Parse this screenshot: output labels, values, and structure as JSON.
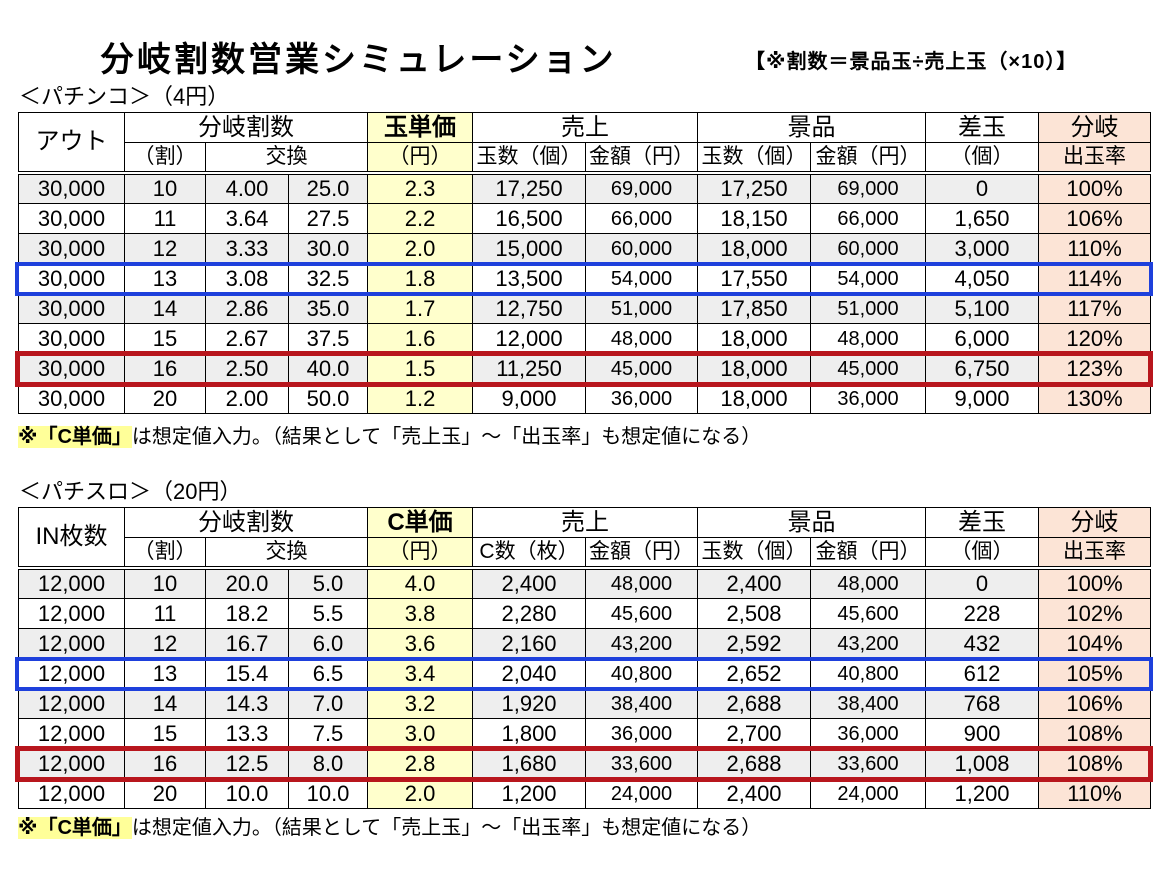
{
  "title": "分岐割数営業シミュレーション",
  "formula_note": "【※割数＝景品玉÷売上玉（×10）】",
  "colors": {
    "unit_price_column": "#ffffcc",
    "payout_rate_column": "#fce4d6",
    "row_stripe": "#eeeeee",
    "highlight_blue": "#1e40dc",
    "highlight_red": "#b8161d",
    "note_highlight": "#ffff99"
  },
  "tables": [
    {
      "label": "＜パチンコ＞（4円）",
      "headers": {
        "first_col": "アウト",
        "split_ratio": "分岐割数",
        "unit_price": "玉単価",
        "sales": "売上",
        "prize": "景品",
        "diff": "差玉",
        "payout": "分岐",
        "ratio_unit": "（割）",
        "exchange": "交換",
        "unit_price_unit": "（円）",
        "sales_count": "玉数（個）",
        "sales_amount": "金額（円）",
        "prize_count": "玉数（個）",
        "prize_amount": "金額（円）",
        "diff_unit": "（個）",
        "payout_rate": "出玉率"
      },
      "rows": [
        {
          "cells": [
            "30,000",
            "10",
            "4.00",
            "25.0",
            "2.3",
            "17,250",
            "69,000",
            "17,250",
            "69,000",
            "0",
            "100%"
          ]
        },
        {
          "cells": [
            "30,000",
            "11",
            "3.64",
            "27.5",
            "2.2",
            "16,500",
            "66,000",
            "18,150",
            "66,000",
            "1,650",
            "106%"
          ]
        },
        {
          "cells": [
            "30,000",
            "12",
            "3.33",
            "30.0",
            "2.0",
            "15,000",
            "60,000",
            "18,000",
            "60,000",
            "3,000",
            "110%"
          ]
        },
        {
          "cells": [
            "30,000",
            "13",
            "3.08",
            "32.5",
            "1.8",
            "13,500",
            "54,000",
            "17,550",
            "54,000",
            "4,050",
            "114%"
          ],
          "highlight": "blue"
        },
        {
          "cells": [
            "30,000",
            "14",
            "2.86",
            "35.0",
            "1.7",
            "12,750",
            "51,000",
            "17,850",
            "51,000",
            "5,100",
            "117%"
          ]
        },
        {
          "cells": [
            "30,000",
            "15",
            "2.67",
            "37.5",
            "1.6",
            "12,000",
            "48,000",
            "18,000",
            "48,000",
            "6,000",
            "120%"
          ]
        },
        {
          "cells": [
            "30,000",
            "16",
            "2.50",
            "40.0",
            "1.5",
            "11,250",
            "45,000",
            "18,000",
            "45,000",
            "6,750",
            "123%"
          ],
          "highlight": "red"
        },
        {
          "cells": [
            "30,000",
            "20",
            "2.00",
            "50.0",
            "1.2",
            "9,000",
            "36,000",
            "18,000",
            "36,000",
            "9,000",
            "130%"
          ]
        }
      ],
      "note": {
        "highlight": "※「C単価」",
        "text": "は想定値入力。（結果として「売上玉」～「出玉率」も想定値になる）"
      }
    },
    {
      "label": "＜パチスロ＞（20円）",
      "headers": {
        "first_col": "IN枚数",
        "split_ratio": "分岐割数",
        "unit_price": "C単価",
        "sales": "売上",
        "prize": "景品",
        "diff": "差玉",
        "payout": "分岐",
        "ratio_unit": "（割）",
        "exchange": "交換",
        "unit_price_unit": "（円）",
        "sales_count": "C数（枚）",
        "sales_amount": "金額（円）",
        "prize_count": "玉数（個）",
        "prize_amount": "金額（円）",
        "diff_unit": "（個）",
        "payout_rate": "出玉率"
      },
      "rows": [
        {
          "cells": [
            "12,000",
            "10",
            "20.0",
            "5.0",
            "4.0",
            "2,400",
            "48,000",
            "2,400",
            "48,000",
            "0",
            "100%"
          ]
        },
        {
          "cells": [
            "12,000",
            "11",
            "18.2",
            "5.5",
            "3.8",
            "2,280",
            "45,600",
            "2,508",
            "45,600",
            "228",
            "102%"
          ]
        },
        {
          "cells": [
            "12,000",
            "12",
            "16.7",
            "6.0",
            "3.6",
            "2,160",
            "43,200",
            "2,592",
            "43,200",
            "432",
            "104%"
          ]
        },
        {
          "cells": [
            "12,000",
            "13",
            "15.4",
            "6.5",
            "3.4",
            "2,040",
            "40,800",
            "2,652",
            "40,800",
            "612",
            "105%"
          ],
          "highlight": "blue"
        },
        {
          "cells": [
            "12,000",
            "14",
            "14.3",
            "7.0",
            "3.2",
            "1,920",
            "38,400",
            "2,688",
            "38,400",
            "768",
            "106%"
          ]
        },
        {
          "cells": [
            "12,000",
            "15",
            "13.3",
            "7.5",
            "3.0",
            "1,800",
            "36,000",
            "2,700",
            "36,000",
            "900",
            "108%"
          ]
        },
        {
          "cells": [
            "12,000",
            "16",
            "12.5",
            "8.0",
            "2.8",
            "1,680",
            "33,600",
            "2,688",
            "33,600",
            "1,008",
            "108%"
          ],
          "highlight": "red"
        },
        {
          "cells": [
            "12,000",
            "20",
            "10.0",
            "10.0",
            "2.0",
            "1,200",
            "24,000",
            "2,400",
            "24,000",
            "1,200",
            "110%"
          ]
        }
      ],
      "note": {
        "highlight": "※「C単価」",
        "text": "は想定値入力。（結果として「売上玉」～「出玉率」も想定値になる）"
      }
    }
  ]
}
